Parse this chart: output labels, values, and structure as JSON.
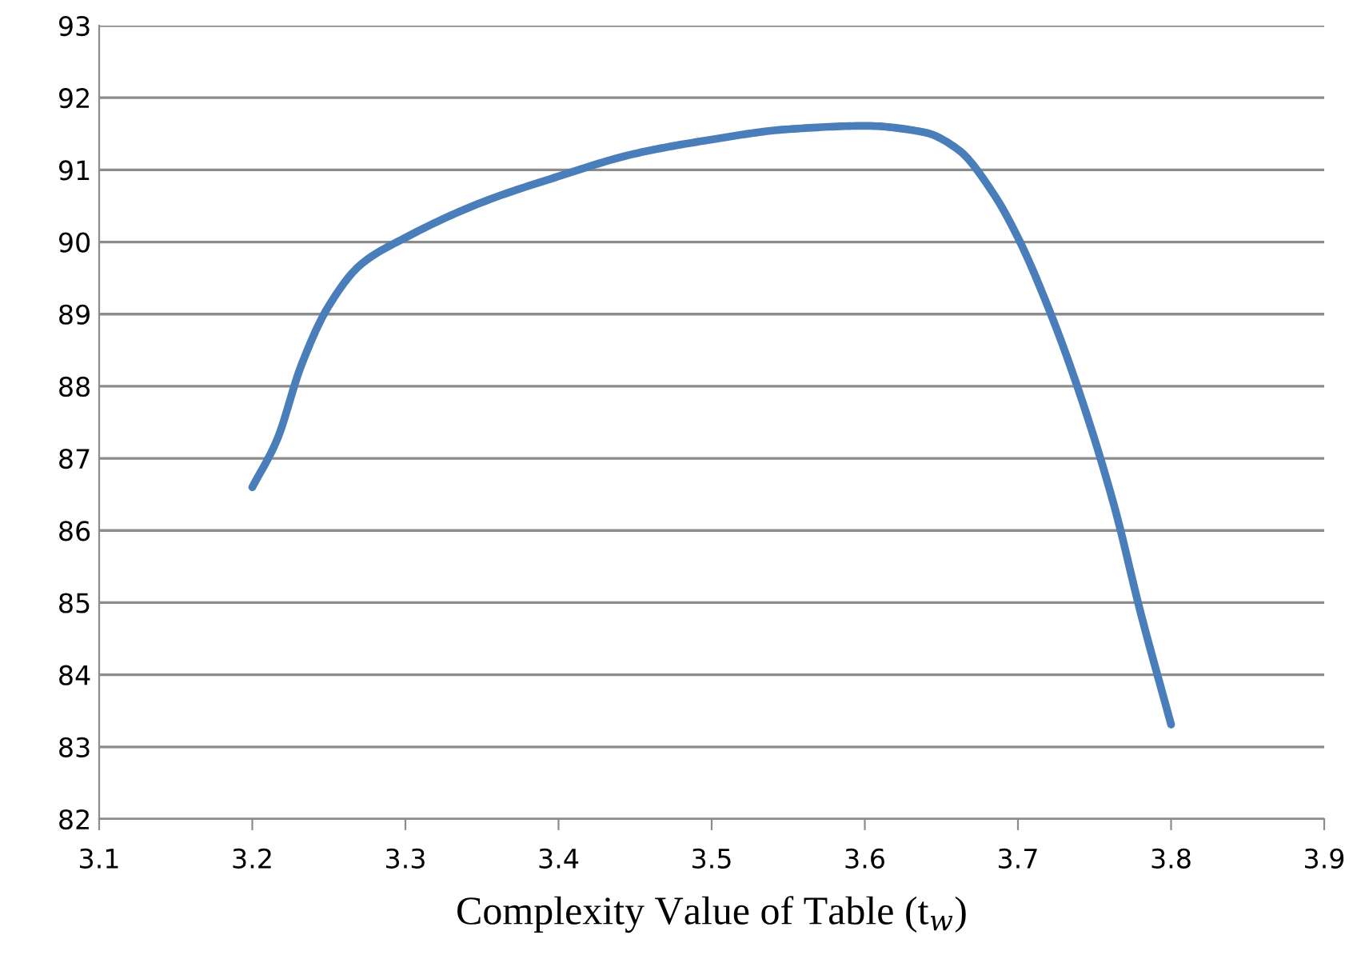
{
  "chart_data": {
    "type": "line",
    "xlabel": "Complexity Value of Table (t$_{w}$)",
    "x": [
      3.2,
      3.216,
      3.232,
      3.249,
      3.271,
      3.3,
      3.35,
      3.4,
      3.449,
      3.5,
      3.548,
      3.6,
      3.639,
      3.661,
      3.684,
      3.7,
      3.72,
      3.74,
      3.763,
      3.78,
      3.8
    ],
    "series": [
      {
        "color": "#4a7ebb",
        "values": [
          86.6,
          87.25,
          88.29,
          89.08,
          89.69,
          90.06,
          90.55,
          90.91,
          91.22,
          91.42,
          91.56,
          91.61,
          91.52,
          91.28,
          90.67,
          90.06,
          89.08,
          87.92,
          86.33,
          84.87,
          83.31
        ]
      }
    ],
    "xlim": [
      3.1,
      3.9
    ],
    "xticks": [
      3.1,
      3.2,
      3.3,
      3.4,
      3.5,
      3.6,
      3.7,
      3.8,
      3.9
    ],
    "ylim": [
      82,
      93
    ],
    "yticks": [
      82,
      83,
      84,
      85,
      86,
      87,
      88,
      89,
      90,
      91,
      92,
      93
    ],
    "grid": "y",
    "marker": "none",
    "line_style": "solid"
  }
}
